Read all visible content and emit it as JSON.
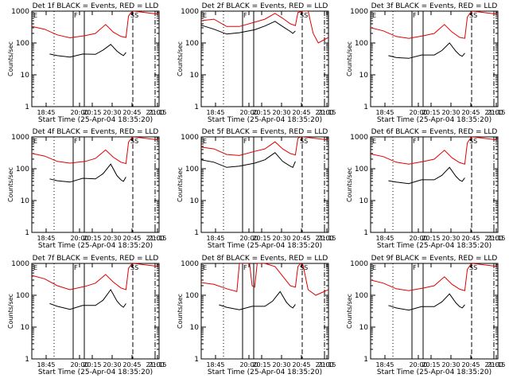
{
  "chart_data": [
    {
      "type": "line",
      "title": "Det 1f BLACK = Events, RED = LLD",
      "xlabel": "Start Time (25-Apr-04 18:35:20)",
      "ylabel": "Counts/sec",
      "x_ticks": [
        "18:45",
        "20:00",
        "20:15",
        "20:30",
        "20:45",
        "21:00",
        "21:15"
      ],
      "y_ticks": [
        "1",
        "10",
        "100",
        "1000"
      ],
      "ylim": [
        1,
        1000
      ],
      "yscale": "log",
      "markers": {
        "E": "E",
        "F": "F",
        "SS": "SS"
      },
      "grid": false,
      "series": [
        {
          "name": "Events",
          "color": "#000000",
          "x": [
            0.14,
            0.2,
            0.3,
            0.4,
            0.5,
            0.56,
            0.62,
            0.67,
            0.7,
            0.72,
            0.74
          ],
          "y": [
            45,
            40,
            36,
            45,
            44,
            60,
            90,
            55,
            45,
            40,
            50
          ]
        },
        {
          "name": "LLD",
          "color": "#dd0000",
          "x": [
            0.0,
            0.1,
            0.2,
            0.3,
            0.42,
            0.5,
            0.58,
            0.64,
            0.7,
            0.74,
            0.76,
            0.78,
            0.8,
            1.0
          ],
          "y": [
            330,
            270,
            180,
            145,
            170,
            200,
            380,
            220,
            160,
            150,
            700,
            900,
            1000,
            800
          ]
        }
      ]
    },
    {
      "type": "line",
      "title": "Det 2f BLACK = Events, RED = LLD",
      "xlabel": "Start Time (25-Apr-04 18:35:20)",
      "ylabel": "Counts/sec",
      "x_ticks": [
        "18:45",
        "20:00",
        "20:15",
        "20:30",
        "20:45",
        "21:00",
        "21:15"
      ],
      "y_ticks": [
        "1",
        "10",
        "100",
        "1000"
      ],
      "ylim": [
        1,
        1000
      ],
      "yscale": "log",
      "markers": {
        "E": "E",
        "F": "F",
        "SS": "SS"
      },
      "grid": false,
      "series": [
        {
          "name": "Events",
          "color": "#000000",
          "x": [
            0.0,
            0.1,
            0.2,
            0.3,
            0.42,
            0.5,
            0.58,
            0.64,
            0.7,
            0.72,
            0.74
          ],
          "y": [
            360,
            270,
            190,
            210,
            260,
            340,
            480,
            330,
            230,
            200,
            240
          ]
        },
        {
          "name": "LLD",
          "color": "#dd0000",
          "x": [
            0.0,
            0.1,
            0.2,
            0.3,
            0.42,
            0.5,
            0.58,
            0.64,
            0.7,
            0.74,
            0.76,
            0.8,
            0.84,
            0.88,
            0.92,
            1.0
          ],
          "y": [
            500,
            560,
            330,
            330,
            450,
            560,
            850,
            600,
            400,
            350,
            900,
            1000,
            1000,
            200,
            100,
            150
          ]
        }
      ]
    },
    {
      "type": "line",
      "title": "Det 3f BLACK = Events, RED = LLD",
      "xlabel": "Start Time (25-Apr-04 18:35:20)",
      "ylabel": "Counts/sec",
      "x_ticks": [
        "18:45",
        "20:00",
        "20:15",
        "20:30",
        "20:45",
        "21:00",
        "21:15"
      ],
      "y_ticks": [
        "1",
        "10",
        "100",
        "1000"
      ],
      "ylim": [
        1,
        1000
      ],
      "yscale": "log",
      "markers": {
        "E": "E",
        "F": "F",
        "SS": "SS"
      },
      "grid": false,
      "series": [
        {
          "name": "Events",
          "color": "#000000",
          "x": [
            0.14,
            0.2,
            0.3,
            0.4,
            0.5,
            0.56,
            0.62,
            0.67,
            0.7,
            0.72,
            0.74
          ],
          "y": [
            40,
            35,
            33,
            42,
            42,
            58,
            100,
            55,
            42,
            38,
            48
          ]
        },
        {
          "name": "LLD",
          "color": "#dd0000",
          "x": [
            0.0,
            0.1,
            0.2,
            0.3,
            0.42,
            0.5,
            0.58,
            0.64,
            0.7,
            0.74,
            0.76,
            0.78,
            0.8,
            1.0
          ],
          "y": [
            300,
            240,
            160,
            140,
            170,
            200,
            380,
            220,
            150,
            140,
            650,
            850,
            1000,
            800
          ]
        }
      ]
    },
    {
      "type": "line",
      "title": "Det 4f BLACK = Events, RED = LLD",
      "xlabel": "Start Time (25-Apr-04 18:35:20)",
      "ylabel": "Counts/sec",
      "x_ticks": [
        "18:45",
        "20:00",
        "20:15",
        "20:30",
        "20:45",
        "21:00",
        "21:15"
      ],
      "y_ticks": [
        "1",
        "10",
        "100",
        "1000"
      ],
      "ylim": [
        1,
        1000
      ],
      "yscale": "log",
      "markers": {
        "E": "E",
        "F": "F",
        "SS": "SS"
      },
      "grid": false,
      "series": [
        {
          "name": "Events",
          "color": "#000000",
          "x": [
            0.14,
            0.2,
            0.3,
            0.4,
            0.5,
            0.56,
            0.62,
            0.67,
            0.7,
            0.72,
            0.74
          ],
          "y": [
            48,
            42,
            38,
            50,
            48,
            70,
            140,
            60,
            45,
            40,
            55
          ]
        },
        {
          "name": "LLD",
          "color": "#dd0000",
          "x": [
            0.0,
            0.1,
            0.2,
            0.3,
            0.42,
            0.5,
            0.58,
            0.64,
            0.7,
            0.74,
            0.76,
            0.78,
            0.8,
            1.0
          ],
          "y": [
            300,
            250,
            170,
            150,
            170,
            210,
            390,
            230,
            160,
            145,
            680,
            880,
            1000,
            800
          ]
        }
      ]
    },
    {
      "type": "line",
      "title": "Det 5f BLACK = Events, RED = LLD",
      "xlabel": "Start Time (25-Apr-04 18:35:20)",
      "ylabel": "Counts/sec",
      "x_ticks": [
        "18:45",
        "20:00",
        "20:15",
        "20:30",
        "20:45",
        "21:00",
        "21:15"
      ],
      "y_ticks": [
        "1",
        "10",
        "100",
        "1000"
      ],
      "ylim": [
        1,
        1000
      ],
      "yscale": "log",
      "markers": {
        "E": "E",
        "F": "F",
        "SS": "SS"
      },
      "grid": false,
      "series": [
        {
          "name": "Events",
          "color": "#000000",
          "x": [
            0.0,
            0.1,
            0.2,
            0.3,
            0.42,
            0.5,
            0.58,
            0.64,
            0.7,
            0.72,
            0.74
          ],
          "y": [
            190,
            160,
            110,
            120,
            150,
            190,
            320,
            170,
            120,
            110,
            170
          ]
        },
        {
          "name": "LLD",
          "color": "#dd0000",
          "x": [
            0.0,
            0.1,
            0.2,
            0.3,
            0.42,
            0.5,
            0.58,
            0.64,
            0.7,
            0.74,
            0.76,
            0.78,
            0.8,
            1.0
          ],
          "y": [
            480,
            420,
            280,
            260,
            350,
            420,
            700,
            420,
            300,
            270,
            900,
            1000,
            1000,
            800
          ]
        }
      ]
    },
    {
      "type": "line",
      "title": "Det 6f BLACK = Events, RED = LLD",
      "xlabel": "Start Time (25-Apr-04 18:35:20)",
      "ylabel": "Counts/sec",
      "x_ticks": [
        "18:45",
        "20:00",
        "20:15",
        "20:30",
        "20:45",
        "21:00",
        "21:15"
      ],
      "y_ticks": [
        "1",
        "10",
        "100",
        "1000"
      ],
      "ylim": [
        1,
        1000
      ],
      "yscale": "log",
      "markers": {
        "E": "E",
        "F": "F",
        "SS": "SS"
      },
      "grid": false,
      "series": [
        {
          "name": "Events",
          "color": "#000000",
          "x": [
            0.14,
            0.2,
            0.3,
            0.4,
            0.5,
            0.56,
            0.62,
            0.67,
            0.7,
            0.72,
            0.74
          ],
          "y": [
            42,
            38,
            34,
            45,
            45,
            62,
            110,
            58,
            44,
            40,
            52
          ]
        },
        {
          "name": "LLD",
          "color": "#dd0000",
          "x": [
            0.0,
            0.1,
            0.2,
            0.3,
            0.42,
            0.5,
            0.58,
            0.64,
            0.7,
            0.74,
            0.76,
            0.78,
            0.8,
            1.0
          ],
          "y": [
            290,
            240,
            160,
            140,
            170,
            200,
            380,
            220,
            155,
            140,
            650,
            850,
            1000,
            800
          ]
        }
      ]
    },
    {
      "type": "line",
      "title": "Det 7f BLACK = Events, RED = LLD",
      "xlabel": "Start Time (25-Apr-04 18:35:20)",
      "ylabel": "Counts/sec",
      "x_ticks": [
        "18:45",
        "20:00",
        "20:15",
        "20:30",
        "20:45",
        "21:00",
        "21:15"
      ],
      "y_ticks": [
        "1",
        "10",
        "100",
        "1000"
      ],
      "ylim": [
        1,
        1000
      ],
      "yscale": "log",
      "markers": {
        "E": "E",
        "F": "F",
        "SS": "SS"
      },
      "grid": false,
      "series": [
        {
          "name": "Events",
          "color": "#000000",
          "x": [
            0.14,
            0.2,
            0.3,
            0.4,
            0.5,
            0.56,
            0.62,
            0.67,
            0.7,
            0.72,
            0.74
          ],
          "y": [
            55,
            45,
            36,
            48,
            48,
            70,
            150,
            65,
            48,
            42,
            55
          ]
        },
        {
          "name": "LLD",
          "color": "#dd0000",
          "x": [
            0.0,
            0.1,
            0.2,
            0.3,
            0.42,
            0.5,
            0.58,
            0.64,
            0.7,
            0.74,
            0.76,
            0.78,
            0.8,
            1.0
          ],
          "y": [
            420,
            330,
            200,
            150,
            190,
            240,
            450,
            260,
            170,
            150,
            700,
            900,
            1000,
            800
          ]
        }
      ]
    },
    {
      "type": "line",
      "title": "Det 8f BLACK = Events, RED = LLD",
      "xlabel": "Start Time (25-Apr-04 18:35:20)",
      "ylabel": "Counts/sec",
      "x_ticks": [
        "18:45",
        "20:00",
        "20:15",
        "20:30",
        "20:45",
        "21:00",
        "21:15"
      ],
      "y_ticks": [
        "1",
        "10",
        "100",
        "1000"
      ],
      "ylim": [
        1,
        1000
      ],
      "yscale": "log",
      "markers": {
        "E": "E",
        "F": "F",
        "SS": "SS"
      },
      "grid": false,
      "series": [
        {
          "name": "Events",
          "color": "#000000",
          "x": [
            0.14,
            0.2,
            0.3,
            0.4,
            0.5,
            0.56,
            0.62,
            0.67,
            0.7,
            0.72,
            0.74
          ],
          "y": [
            50,
            42,
            35,
            45,
            45,
            65,
            130,
            60,
            45,
            40,
            52
          ]
        },
        {
          "name": "LLD",
          "color": "#dd0000",
          "x": [
            0.0,
            0.1,
            0.2,
            0.28,
            0.3,
            0.38,
            0.4,
            0.42,
            0.44,
            0.5,
            0.58,
            0.64,
            0.7,
            0.74,
            0.76,
            0.78,
            0.8,
            0.84,
            0.9,
            1.0
          ],
          "y": [
            250,
            220,
            160,
            130,
            1000,
            1000,
            200,
            180,
            1000,
            1000,
            800,
            400,
            200,
            180,
            800,
            1000,
            900,
            150,
            100,
            150
          ]
        }
      ]
    },
    {
      "type": "line",
      "title": "Det 9f BLACK = Events, RED = LLD",
      "xlabel": "Start Time (25-Apr-04 18:35:20)",
      "ylabel": "Counts/sec",
      "x_ticks": [
        "18:45",
        "20:00",
        "20:15",
        "20:30",
        "20:45",
        "21:00",
        "21:15"
      ],
      "y_ticks": [
        "1",
        "10",
        "100",
        "1000"
      ],
      "ylim": [
        1,
        1000
      ],
      "yscale": "log",
      "markers": {
        "E": "E",
        "F": "F",
        "SS": "SS"
      },
      "grid": false,
      "series": [
        {
          "name": "Events",
          "color": "#000000",
          "x": [
            0.14,
            0.2,
            0.3,
            0.4,
            0.5,
            0.56,
            0.62,
            0.67,
            0.7,
            0.72,
            0.74
          ],
          "y": [
            48,
            40,
            34,
            44,
            44,
            62,
            110,
            58,
            44,
            40,
            50
          ]
        },
        {
          "name": "LLD",
          "color": "#dd0000",
          "x": [
            0.0,
            0.1,
            0.2,
            0.3,
            0.42,
            0.5,
            0.58,
            0.64,
            0.7,
            0.74,
            0.76,
            0.78,
            0.8,
            1.0
          ],
          "y": [
            300,
            240,
            160,
            140,
            170,
            200,
            380,
            220,
            155,
            140,
            650,
            850,
            1000,
            800
          ]
        }
      ]
    }
  ]
}
